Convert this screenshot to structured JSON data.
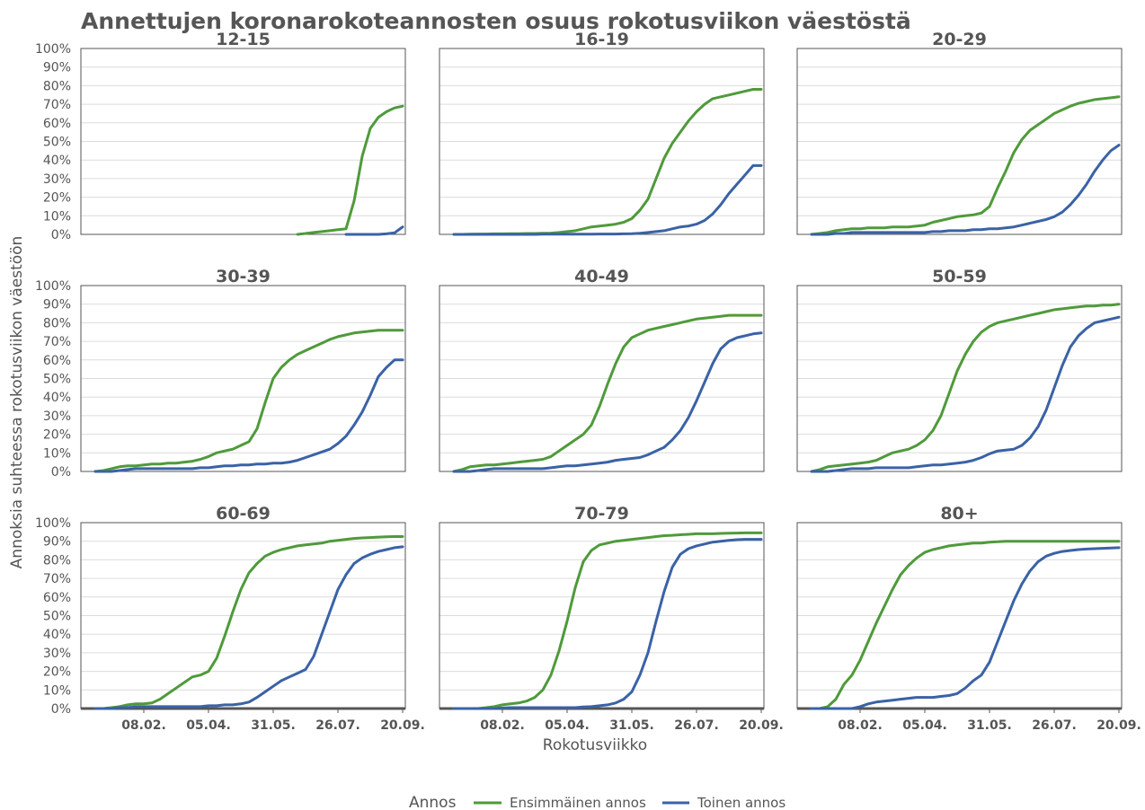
{
  "chart_data": {
    "type": "line",
    "title": "Annettujen koronarokoteannosten osuus rokotusviikon väestöstä",
    "xlabel": "Rokotusviikko",
    "ylabel": "Annoksia suhteessa rokotusviikon väestöön",
    "x": [
      "28.12.",
      "04.01.",
      "11.01.",
      "18.01.",
      "25.01.",
      "01.02.",
      "08.02.",
      "15.02.",
      "22.02.",
      "01.03.",
      "08.03.",
      "15.03.",
      "22.03.",
      "29.03.",
      "05.04.",
      "12.04.",
      "19.04.",
      "26.04.",
      "03.05.",
      "10.05.",
      "17.05.",
      "24.05.",
      "31.05.",
      "07.06.",
      "14.06.",
      "21.06.",
      "28.06.",
      "05.07.",
      "12.07.",
      "19.07.",
      "26.07.",
      "02.08.",
      "09.08.",
      "16.08.",
      "23.08.",
      "30.08.",
      "06.09.",
      "13.09.",
      "20.09."
    ],
    "x_ticks": [
      "08.02.",
      "05.04.",
      "31.05.",
      "26.07.",
      "20.09."
    ],
    "y_ticks": [
      "0%",
      "10%",
      "20%",
      "30%",
      "40%",
      "50%",
      "60%",
      "70%",
      "80%",
      "90%",
      "100%"
    ],
    "ylim": [
      0,
      100
    ],
    "grid": true,
    "legend": {
      "title": "Annos",
      "placement": "bottom",
      "entries": [
        {
          "name": "Ensimmäinen annos",
          "color": "#4f9a3b"
        },
        {
          "name": "Toinen annos",
          "color": "#3a62a6"
        }
      ]
    },
    "panels": [
      {
        "name": "12-15",
        "series": [
          {
            "name": "Ensimmäinen annos",
            "values": [
              null,
              null,
              null,
              null,
              null,
              null,
              null,
              null,
              null,
              null,
              null,
              null,
              null,
              null,
              null,
              null,
              null,
              null,
              null,
              null,
              null,
              null,
              null,
              null,
              null,
              0,
              0.5,
              1,
              1.5,
              2,
              2.5,
              3,
              18,
              42,
              57,
              63,
              66,
              68,
              69
            ]
          },
          {
            "name": "Toinen annos",
            "values": [
              null,
              null,
              null,
              null,
              null,
              null,
              null,
              null,
              null,
              null,
              null,
              null,
              null,
              null,
              null,
              null,
              null,
              null,
              null,
              null,
              null,
              null,
              null,
              null,
              null,
              null,
              null,
              null,
              null,
              null,
              null,
              0,
              0,
              0,
              0,
              0,
              0.3,
              0.8,
              4
            ]
          }
        ]
      },
      {
        "name": "16-19",
        "series": [
          {
            "name": "Ensimmäinen annos",
            "values": [
              0,
              0,
              0.1,
              0.2,
              0.2,
              0.3,
              0.3,
              0.4,
              0.4,
              0.5,
              0.5,
              0.6,
              0.7,
              1,
              1.5,
              2,
              3,
              4,
              4.5,
              5,
              5.5,
              6.5,
              8.5,
              13,
              19,
              30,
              41,
              49,
              55,
              61,
              66,
              70,
              73,
              74,
              75,
              76,
              77,
              78,
              78
            ]
          },
          {
            "name": "Toinen annos",
            "values": [
              0,
              0,
              0,
              0,
              0,
              0,
              0,
              0,
              0,
              0,
              0,
              0.1,
              0.1,
              0.1,
              0.1,
              0.1,
              0.1,
              0.1,
              0.2,
              0.2,
              0.2,
              0.3,
              0.4,
              0.6,
              1,
              1.5,
              2,
              3,
              4,
              4.5,
              5.5,
              7.5,
              11,
              16,
              22,
              27,
              32,
              37,
              37
            ]
          }
        ]
      },
      {
        "name": "20-29",
        "series": [
          {
            "name": "Ensimmäinen annos",
            "values": [
              0,
              0.5,
              1,
              2,
              2.5,
              3,
              3,
              3.5,
              3.5,
              3.5,
              4,
              4,
              4,
              4.5,
              5,
              6.5,
              7.5,
              8.5,
              9.5,
              10,
              10.5,
              11.5,
              15,
              25,
              34,
              44,
              51,
              56,
              59,
              62,
              65,
              67,
              69,
              70.5,
              71.5,
              72.5,
              73,
              73.5,
              74
            ]
          },
          {
            "name": "Toinen annos",
            "values": [
              0,
              0,
              0,
              0.5,
              0.5,
              1,
              1,
              1,
              1,
              1,
              1,
              1,
              1,
              1,
              1,
              1.5,
              1.5,
              2,
              2,
              2,
              2.5,
              2.5,
              3,
              3,
              3.5,
              4,
              5,
              6,
              7,
              8,
              9.5,
              12,
              16,
              21,
              27,
              34,
              40,
              45,
              48
            ]
          }
        ]
      },
      {
        "name": "30-39",
        "series": [
          {
            "name": "Ensimmäinen annos",
            "values": [
              0,
              0.5,
              1.5,
              2.5,
              3,
              3,
              3.5,
              4,
              4,
              4.5,
              4.5,
              5,
              5.5,
              6.5,
              8,
              10,
              11,
              12,
              14,
              16,
              23,
              37,
              50,
              56,
              60,
              63,
              65,
              67,
              69,
              71,
              72.5,
              73.5,
              74.5,
              75,
              75.5,
              76,
              76,
              76,
              76
            ]
          },
          {
            "name": "Toinen annos",
            "values": [
              0,
              0,
              0,
              0.5,
              1,
              1.5,
              1.5,
              1.5,
              1.5,
              1.5,
              1.5,
              1.5,
              1.5,
              2,
              2,
              2.5,
              3,
              3,
              3.5,
              3.5,
              4,
              4,
              4.5,
              4.5,
              5,
              6,
              7.5,
              9,
              10.5,
              12,
              15,
              19,
              25,
              32,
              41,
              51,
              56,
              60,
              60
            ]
          }
        ]
      },
      {
        "name": "40-49",
        "series": [
          {
            "name": "Ensimmäinen annos",
            "values": [
              0,
              1,
              2.5,
              3,
              3.5,
              3.5,
              4,
              4.5,
              5,
              5.5,
              6,
              6.5,
              8,
              11,
              14,
              17,
              20,
              25,
              35,
              47,
              58,
              67,
              72,
              74,
              76,
              77,
              78,
              79,
              80,
              81,
              82,
              82.5,
              83,
              83.5,
              84,
              84,
              84,
              84,
              84
            ]
          },
          {
            "name": "Toinen annos",
            "values": [
              0,
              0,
              0,
              0.5,
              1,
              1.5,
              1.5,
              1.5,
              1.5,
              1.5,
              1.5,
              1.5,
              2,
              2.5,
              3,
              3,
              3.5,
              4,
              4.5,
              5,
              6,
              6.5,
              7,
              7.5,
              9,
              11,
              13,
              17,
              22,
              29,
              38,
              48,
              58,
              66,
              70,
              72,
              73,
              74,
              74.5
            ]
          }
        ]
      },
      {
        "name": "50-59",
        "series": [
          {
            "name": "Ensimmäinen annos",
            "values": [
              0,
              1,
              2.5,
              3,
              3.5,
              4,
              4.5,
              5,
              6,
              8,
              10,
              11,
              12,
              14,
              17,
              22,
              30,
              42,
              54,
              63,
              70,
              75,
              78,
              80,
              81,
              82,
              83,
              84,
              85,
              86,
              87,
              87.5,
              88,
              88.5,
              89,
              89,
              89.5,
              89.5,
              90
            ]
          },
          {
            "name": "Toinen annos",
            "values": [
              0,
              0,
              0,
              0.5,
              1,
              1.5,
              1.5,
              1.5,
              2,
              2,
              2,
              2,
              2,
              2.5,
              3,
              3.5,
              3.5,
              4,
              4.5,
              5,
              6,
              7.5,
              9.5,
              11,
              11.5,
              12,
              14,
              18,
              24,
              33,
              45,
              57,
              67,
              73,
              77,
              80,
              81,
              82,
              83
            ]
          }
        ]
      },
      {
        "name": "60-69",
        "series": [
          {
            "name": "Ensimmäinen annos",
            "values": [
              0,
              0,
              0.5,
              1,
              2,
              2.5,
              2.5,
              3,
              5,
              8,
              11,
              14,
              17,
              18,
              20,
              27,
              39,
              52,
              64,
              73,
              78,
              82,
              84,
              85.5,
              86.5,
              87.5,
              88,
              88.5,
              89,
              90,
              90.5,
              91,
              91.5,
              91.8,
              92,
              92.2,
              92.4,
              92.5,
              92.5
            ]
          },
          {
            "name": "Toinen annos",
            "values": [
              0,
              0,
              0,
              0.5,
              0.5,
              1,
              1,
              1,
              1,
              1,
              1,
              1,
              1,
              1,
              1.5,
              1.5,
              2,
              2,
              2.5,
              3.5,
              6,
              9,
              12,
              15,
              17,
              19,
              21,
              28,
              40,
              52,
              64,
              72,
              78,
              81,
              83,
              84.5,
              85.5,
              86.5,
              87
            ]
          }
        ]
      },
      {
        "name": "70-79",
        "series": [
          {
            "name": "Ensimmäinen annos",
            "values": [
              0,
              0,
              0,
              0,
              0.5,
              1,
              2,
              2.5,
              3,
              4,
              6,
              10,
              18,
              31,
              47,
              65,
              79,
              85,
              88,
              89,
              90,
              90.5,
              91,
              91.5,
              92,
              92.5,
              93,
              93.2,
              93.5,
              93.7,
              94,
              94,
              94,
              94.2,
              94.3,
              94.4,
              94.5,
              94.5,
              94.5
            ]
          },
          {
            "name": "Toinen annos",
            "values": [
              0,
              0,
              0,
              0,
              0,
              0,
              0.3,
              0.5,
              0.5,
              0.5,
              0.5,
              0.5,
              0.5,
              0.5,
              0.5,
              0.5,
              0.8,
              1,
              1.5,
              2,
              3,
              5,
              9,
              18,
              30,
              47,
              63,
              76,
              83,
              86,
              87.5,
              88.5,
              89.5,
              90,
              90.5,
              90.8,
              91,
              91,
              91
            ]
          }
        ]
      },
      {
        "name": "80+",
        "series": [
          {
            "name": "Ensimmäinen annos",
            "values": [
              0,
              0,
              1,
              5,
              13,
              18,
              26,
              36,
              46,
              55,
              64,
              72,
              77,
              81,
              84,
              85.5,
              86.5,
              87.5,
              88,
              88.5,
              89,
              89,
              89.5,
              89.7,
              90,
              90,
              90,
              90,
              90,
              90,
              90,
              90,
              90,
              90,
              90,
              90,
              90,
              90,
              90
            ]
          },
          {
            "name": "Toinen annos",
            "values": [
              0,
              0,
              0,
              0,
              0,
              0,
              1,
              2.5,
              3.5,
              4,
              4.5,
              5,
              5.5,
              6,
              6,
              6,
              6.5,
              7,
              8,
              11,
              15,
              18,
              25,
              36,
              47,
              58,
              67,
              74,
              79,
              82,
              83.5,
              84.5,
              85,
              85.5,
              85.8,
              86,
              86.2,
              86.4,
              86.5
            ]
          }
        ]
      }
    ]
  }
}
